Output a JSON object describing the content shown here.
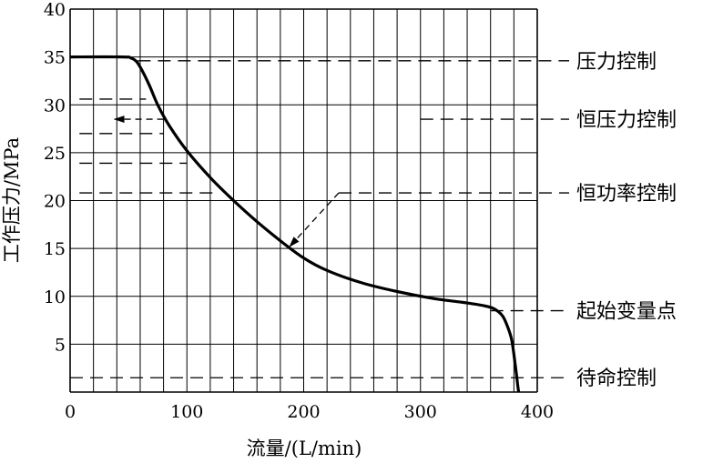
{
  "chart_data": {
    "type": "line",
    "xlabel": "流量/(L/min)",
    "ylabel": "工作压力/MPa",
    "xlim": [
      0,
      400
    ],
    "ylim": [
      0,
      40
    ],
    "xticks": [
      "0",
      "100",
      "200",
      "300",
      "400"
    ],
    "yticks": [
      "5",
      "10",
      "15",
      "20",
      "25",
      "30",
      "35",
      "40"
    ],
    "grid": "on",
    "series": [
      {
        "x": [
          0,
          45,
          52,
          57,
          62,
          68,
          75,
          85,
          100,
          120,
          140,
          160,
          180,
          200,
          220,
          250,
          280,
          310,
          340,
          355,
          363,
          370,
          374,
          378,
          381,
          383,
          384
        ],
        "y": [
          35,
          35,
          34.9,
          34.5,
          33.5,
          32,
          30,
          27.8,
          25.2,
          22.4,
          20,
          17.8,
          15.8,
          14,
          12.7,
          11.4,
          10.5,
          9.8,
          9.3,
          9.0,
          8.7,
          8.0,
          7.0,
          5.5,
          3.0,
          1.0,
          0
        ]
      }
    ],
    "annotations": [
      {
        "text": "压力控制",
        "y": 34.6,
        "x0": 58
      },
      {
        "text": "恒压力控制",
        "y": 28.5,
        "x0": 300
      },
      {
        "text": "恒功率控制",
        "y": 20.8,
        "x0": 230
      },
      {
        "text": "起始变量点",
        "y": 8.5,
        "x0": 360
      },
      {
        "text": "待命控制",
        "y": 1.5,
        "x0": 0
      }
    ],
    "left_marks": [
      {
        "y": 30.6,
        "x0": 8,
        "x1": 65
      },
      {
        "y": 27.0,
        "x0": 8,
        "x1": 80
      },
      {
        "y": 23.9,
        "x0": 8,
        "x1": 100
      },
      {
        "y": 20.8,
        "x0": 8,
        "x1": 125
      }
    ],
    "arrows": [
      {
        "from": [
          80,
          28.5
        ],
        "to": [
          38,
          28.5
        ]
      },
      {
        "from": [
          230,
          20.8
        ],
        "to": [
          188,
          15.2
        ]
      }
    ]
  }
}
